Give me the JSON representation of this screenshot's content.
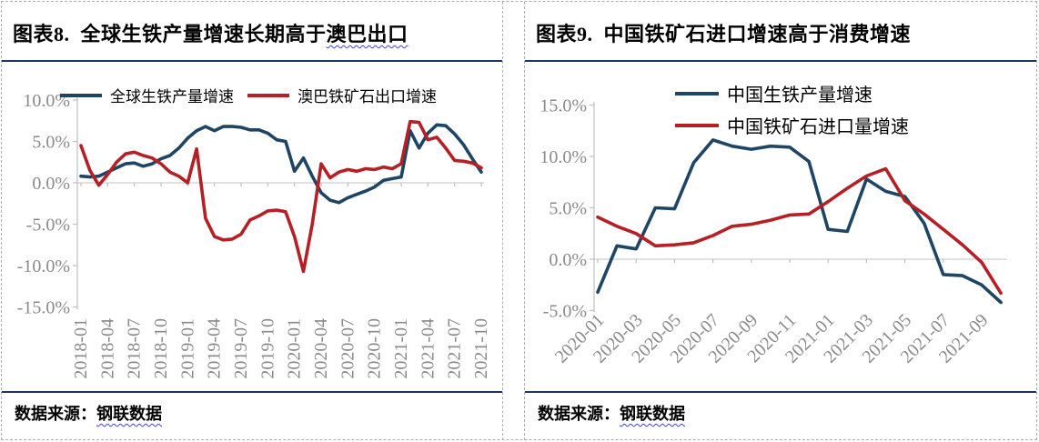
{
  "colors": {
    "series_blue": "#1F4565",
    "series_red": "#B42025",
    "rule_navy": "#17375E",
    "axis_text": "#8A8A8A",
    "axis_line": "#BFBFBF",
    "wavy_underline": "#3848C8",
    "dashed_border": "#ADADAD"
  },
  "panels": [
    {
      "title": {
        "plain": "图表8.  全球生铁产量增速长期高于",
        "wavy": "澳巴出口"
      },
      "footer": {
        "label": "数据来源：",
        "source": "钢联数据"
      },
      "chart_index": 0
    },
    {
      "title": {
        "plain": "图表9.  中国铁矿石进口增速高于消费增速",
        "wavy": ""
      },
      "footer": {
        "label": "数据来源：",
        "source": "钢联数据"
      },
      "chart_index": 1
    }
  ],
  "chart_data": [
    {
      "type": "line",
      "title": "全球生铁产量增速长期高于澳巴出口",
      "unit": "%",
      "legend_position": "top-horizontal",
      "grid": "zero-line-only",
      "ylim": [
        -15,
        10
      ],
      "yticks": [
        10,
        5,
        0,
        -5,
        -10,
        -15
      ],
      "ytick_labels": [
        "10.0%",
        "5.0%",
        "0.0%",
        "-5.0%",
        "-10.0%",
        "-15.0%"
      ],
      "x_tick_every": 3,
      "x_tick_labels": [
        "2018-01",
        "2018-04",
        "2018-07",
        "2018-10",
        "2019-01",
        "2019-04",
        "2019-07",
        "2019-10",
        "2020-01",
        "2020-04",
        "2020-07",
        "2020-10",
        "2021-01",
        "2021-04",
        "2021-07",
        "2021-10"
      ],
      "x": [
        "2018-01",
        "2018-02",
        "2018-03",
        "2018-04",
        "2018-05",
        "2018-06",
        "2018-07",
        "2018-08",
        "2018-09",
        "2018-10",
        "2018-11",
        "2018-12",
        "2019-01",
        "2019-02",
        "2019-03",
        "2019-04",
        "2019-05",
        "2019-06",
        "2019-07",
        "2019-08",
        "2019-09",
        "2019-10",
        "2019-11",
        "2019-12",
        "2020-01",
        "2020-02",
        "2020-03",
        "2020-04",
        "2020-05",
        "2020-06",
        "2020-07",
        "2020-08",
        "2020-09",
        "2020-10",
        "2020-11",
        "2020-12",
        "2021-01",
        "2021-02",
        "2021-03",
        "2021-04",
        "2021-05",
        "2021-06",
        "2021-07",
        "2021-08",
        "2021-09",
        "2021-10"
      ],
      "series": [
        {
          "name": "全球生铁产量增速",
          "color": "#1F4565",
          "values": [
            0.8,
            0.7,
            0.8,
            1.3,
            1.8,
            2.3,
            2.4,
            2.0,
            2.3,
            2.9,
            3.3,
            4.2,
            5.4,
            6.3,
            6.8,
            6.3,
            6.8,
            6.8,
            6.7,
            6.4,
            6.4,
            6.0,
            5.2,
            5.0,
            1.4,
            3.0,
            0.8,
            -1.2,
            -2.1,
            -2.4,
            -1.8,
            -1.4,
            -1.0,
            -0.5,
            0.3,
            0.5,
            0.7,
            6.3,
            4.2,
            6.0,
            7.0,
            6.9,
            5.9,
            4.6,
            2.9,
            1.3
          ]
        },
        {
          "name": "澳巴铁矿石出口增速",
          "color": "#B42025",
          "values": [
            4.5,
            1.5,
            -0.3,
            1.0,
            2.5,
            3.5,
            3.7,
            3.3,
            3.0,
            2.3,
            1.3,
            0.8,
            0.0,
            4.1,
            -4.3,
            -6.5,
            -6.9,
            -6.8,
            -6.2,
            -4.5,
            -4.0,
            -3.4,
            -3.3,
            -3.5,
            -6.5,
            -10.7,
            -5.0,
            2.3,
            0.6,
            1.3,
            1.6,
            1.4,
            1.7,
            1.6,
            1.9,
            1.7,
            2.3,
            7.4,
            7.3,
            5.2,
            5.5,
            4.2,
            2.7,
            2.6,
            2.4,
            1.8
          ]
        }
      ]
    },
    {
      "type": "line",
      "title": "中国铁矿石进口增速高于消费增速",
      "unit": "%",
      "legend_position": "top-stacked",
      "grid": "zero-line-only",
      "ylim": [
        -5,
        15
      ],
      "yticks": [
        15,
        10,
        5,
        0,
        -5
      ],
      "ytick_labels": [
        "15.0%",
        "10.0%",
        "5.0%",
        "0.0%",
        "-5.0%"
      ],
      "x_tick_every": 2,
      "x_tick_labels": [
        "2020-01",
        "2020-03",
        "2020-05",
        "2020-07",
        "2020-09",
        "2020-11",
        "2021-01",
        "2021-03",
        "2021-05",
        "2021-07",
        "2021-09"
      ],
      "x": [
        "2020-01",
        "2020-02",
        "2020-03",
        "2020-04",
        "2020-05",
        "2020-06",
        "2020-07",
        "2020-08",
        "2020-09",
        "2020-10",
        "2020-11",
        "2020-12",
        "2021-01",
        "2021-02",
        "2021-03",
        "2021-04",
        "2021-05",
        "2021-06",
        "2021-07",
        "2021-08",
        "2021-09",
        "2021-10"
      ],
      "series": [
        {
          "name": "中国生铁产量增速",
          "color": "#1F4565",
          "values": [
            -3.2,
            1.3,
            1.0,
            5.0,
            4.9,
            9.4,
            11.6,
            11.0,
            10.7,
            11.0,
            10.9,
            9.5,
            2.9,
            2.7,
            7.8,
            6.6,
            6.1,
            3.5,
            -1.5,
            -1.6,
            -2.5,
            -4.2
          ]
        },
        {
          "name": "中国铁矿石进口量增速",
          "color": "#B42025",
          "values": [
            4.1,
            3.2,
            2.5,
            1.3,
            1.4,
            1.6,
            2.3,
            3.2,
            3.4,
            3.8,
            4.3,
            4.4,
            5.6,
            6.9,
            8.1,
            8.8,
            5.7,
            4.4,
            2.9,
            1.4,
            -0.3,
            -3.3
          ]
        }
      ]
    }
  ]
}
